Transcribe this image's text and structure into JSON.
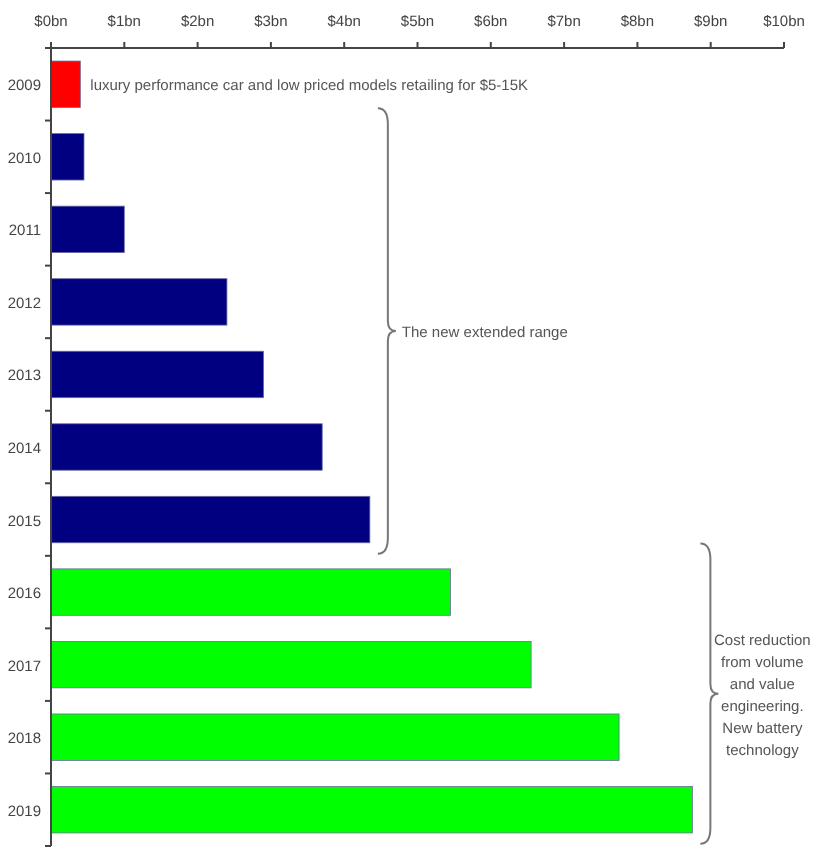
{
  "chart_data": {
    "type": "bar",
    "orientation": "horizontal",
    "categories": [
      "2009",
      "2010",
      "2011",
      "2012",
      "2013",
      "2014",
      "2015",
      "2016",
      "2017",
      "2018",
      "2019"
    ],
    "values": [
      0.4,
      0.45,
      1.0,
      2.4,
      2.9,
      3.7,
      4.35,
      5.45,
      6.55,
      7.75,
      8.75
    ],
    "colors": [
      "#ff0000",
      "#000080",
      "#000080",
      "#000080",
      "#000080",
      "#000080",
      "#000080",
      "#00ff00",
      "#00ff00",
      "#00ff00",
      "#00ff00"
    ],
    "xlim": [
      0,
      10
    ],
    "xticks": [
      {
        "value": 0,
        "label": "$0bn"
      },
      {
        "value": 1,
        "label": "$1bn"
      },
      {
        "value": 2,
        "label": "$2bn"
      },
      {
        "value": 3,
        "label": "$3bn"
      },
      {
        "value": 4,
        "label": "$4bn"
      },
      {
        "value": 5,
        "label": "$5bn"
      },
      {
        "value": 6,
        "label": "$6bn"
      },
      {
        "value": 7,
        "label": "$7bn"
      },
      {
        "value": 8,
        "label": "$8bn"
      },
      {
        "value": 9,
        "label": "$9bn"
      },
      {
        "value": 10,
        "label": "$10bn"
      }
    ],
    "grid": false,
    "annotations": [
      "luxury performance car and low priced models retailing for $5-15K",
      "The new extended range",
      "Cost reduction from volume and value engineering. New battery technology"
    ]
  }
}
